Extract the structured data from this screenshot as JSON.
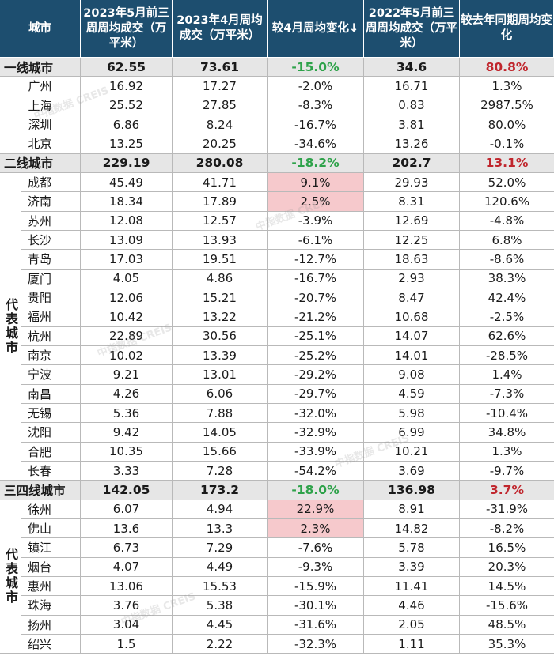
{
  "header": {
    "col_city": "城市",
    "col_may_2023": "2023年5月前三周周均成交（万平米）",
    "col_apr_2023": "2023年4月周均成交（万平米）",
    "col_vs_apr": "较4月周均变化↓",
    "col_may_2022": "2022年5月前三周周均成交（万平米）",
    "col_yoy": "较去年同期周均变化"
  },
  "groups": [
    {
      "tier": {
        "city": "一线城市",
        "may_2023": "62.55",
        "apr_2023": "73.61",
        "vs_apr": "-15.0%",
        "may_2022": "34.6",
        "yoy": "80.8%"
      },
      "group_label": "",
      "rows": [
        {
          "city": "广州",
          "may_2023": "16.92",
          "apr_2023": "17.27",
          "vs_apr": "-2.0%",
          "may_2022": "16.71",
          "yoy": "1.3%"
        },
        {
          "city": "上海",
          "may_2023": "25.52",
          "apr_2023": "27.85",
          "vs_apr": "-8.3%",
          "may_2022": "0.83",
          "yoy": "2987.5%"
        },
        {
          "city": "深圳",
          "may_2023": "6.86",
          "apr_2023": "8.24",
          "vs_apr": "-16.7%",
          "may_2022": "3.81",
          "yoy": "80.0%"
        },
        {
          "city": "北京",
          "may_2023": "13.25",
          "apr_2023": "20.25",
          "vs_apr": "-34.6%",
          "may_2022": "13.26",
          "yoy": "-0.1%"
        }
      ]
    },
    {
      "tier": {
        "city": "二线城市",
        "may_2023": "229.19",
        "apr_2023": "280.08",
        "vs_apr": "-18.2%",
        "may_2022": "202.7",
        "yoy": "13.1%"
      },
      "group_label": "代表城市",
      "rows": [
        {
          "city": "成都",
          "may_2023": "45.49",
          "apr_2023": "41.71",
          "vs_apr": "9.1%",
          "may_2022": "29.93",
          "yoy": "52.0%",
          "highlight": true
        },
        {
          "city": "济南",
          "may_2023": "18.34",
          "apr_2023": "17.89",
          "vs_apr": "2.5%",
          "may_2022": "8.31",
          "yoy": "120.6%",
          "highlight": true
        },
        {
          "city": "苏州",
          "may_2023": "12.08",
          "apr_2023": "12.57",
          "vs_apr": "-3.9%",
          "may_2022": "12.69",
          "yoy": "-4.8%"
        },
        {
          "city": "长沙",
          "may_2023": "13.09",
          "apr_2023": "13.93",
          "vs_apr": "-6.1%",
          "may_2022": "12.25",
          "yoy": "6.8%"
        },
        {
          "city": "青岛",
          "may_2023": "17.03",
          "apr_2023": "19.51",
          "vs_apr": "-12.7%",
          "may_2022": "18.63",
          "yoy": "-8.6%"
        },
        {
          "city": "厦门",
          "may_2023": "4.05",
          "apr_2023": "4.86",
          "vs_apr": "-16.7%",
          "may_2022": "2.93",
          "yoy": "38.3%"
        },
        {
          "city": "贵阳",
          "may_2023": "12.06",
          "apr_2023": "15.21",
          "vs_apr": "-20.7%",
          "may_2022": "8.47",
          "yoy": "42.4%"
        },
        {
          "city": "福州",
          "may_2023": "10.42",
          "apr_2023": "13.22",
          "vs_apr": "-21.2%",
          "may_2022": "10.68",
          "yoy": "-2.5%"
        },
        {
          "city": "杭州",
          "may_2023": "22.89",
          "apr_2023": "30.56",
          "vs_apr": "-25.1%",
          "may_2022": "14.07",
          "yoy": "62.6%"
        },
        {
          "city": "南京",
          "may_2023": "10.02",
          "apr_2023": "13.39",
          "vs_apr": "-25.2%",
          "may_2022": "14.01",
          "yoy": "-28.5%"
        },
        {
          "city": "宁波",
          "may_2023": "9.21",
          "apr_2023": "13.01",
          "vs_apr": "-29.2%",
          "may_2022": "9.08",
          "yoy": "1.4%"
        },
        {
          "city": "南昌",
          "may_2023": "4.26",
          "apr_2023": "6.06",
          "vs_apr": "-29.7%",
          "may_2022": "4.59",
          "yoy": "-7.3%"
        },
        {
          "city": "无锡",
          "may_2023": "5.36",
          "apr_2023": "7.88",
          "vs_apr": "-32.0%",
          "may_2022": "5.98",
          "yoy": "-10.4%"
        },
        {
          "city": "沈阳",
          "may_2023": "9.42",
          "apr_2023": "14.05",
          "vs_apr": "-32.9%",
          "may_2022": "6.99",
          "yoy": "34.8%"
        },
        {
          "city": "合肥",
          "may_2023": "10.35",
          "apr_2023": "15.66",
          "vs_apr": "-33.9%",
          "may_2022": "10.21",
          "yoy": "1.3%"
        },
        {
          "city": "长春",
          "may_2023": "3.33",
          "apr_2023": "7.28",
          "vs_apr": "-54.2%",
          "may_2022": "3.69",
          "yoy": "-9.7%"
        }
      ]
    },
    {
      "tier": {
        "city": "三四线城市",
        "may_2023": "142.05",
        "apr_2023": "173.2",
        "vs_apr": "-18.0%",
        "may_2022": "136.98",
        "yoy": "3.7%"
      },
      "group_label": "代表城市",
      "rows": [
        {
          "city": "徐州",
          "may_2023": "6.07",
          "apr_2023": "4.94",
          "vs_apr": "22.9%",
          "may_2022": "8.91",
          "yoy": "-31.9%",
          "highlight": true
        },
        {
          "city": "佛山",
          "may_2023": "13.6",
          "apr_2023": "13.3",
          "vs_apr": "2.3%",
          "may_2022": "14.82",
          "yoy": "-8.2%",
          "highlight": true
        },
        {
          "city": "镇江",
          "may_2023": "6.73",
          "apr_2023": "7.29",
          "vs_apr": "-7.6%",
          "may_2022": "5.78",
          "yoy": "16.5%"
        },
        {
          "city": "烟台",
          "may_2023": "4.07",
          "apr_2023": "4.49",
          "vs_apr": "-9.3%",
          "may_2022": "3.39",
          "yoy": "20.3%"
        },
        {
          "city": "惠州",
          "may_2023": "13.06",
          "apr_2023": "15.53",
          "vs_apr": "-15.9%",
          "may_2022": "11.41",
          "yoy": "14.5%"
        },
        {
          "city": "珠海",
          "may_2023": "3.76",
          "apr_2023": "5.38",
          "vs_apr": "-30.1%",
          "may_2022": "4.46",
          "yoy": "-15.6%"
        },
        {
          "city": "扬州",
          "may_2023": "3.04",
          "apr_2023": "4.45",
          "vs_apr": "-31.6%",
          "may_2022": "2.05",
          "yoy": "48.5%"
        },
        {
          "city": "绍兴",
          "may_2023": "1.5",
          "apr_2023": "2.22",
          "vs_apr": "-32.3%",
          "may_2022": "1.11",
          "yoy": "35.3%"
        }
      ]
    }
  ],
  "watermark": "中指数据 CREIS",
  "colors": {
    "header_bg": "#1d4e6f",
    "tier_bg": "#e6e6e6",
    "highlight_bg": "#f6c9cc",
    "positive_bold": "#c0262d",
    "negative_bold": "#2ea24a"
  }
}
